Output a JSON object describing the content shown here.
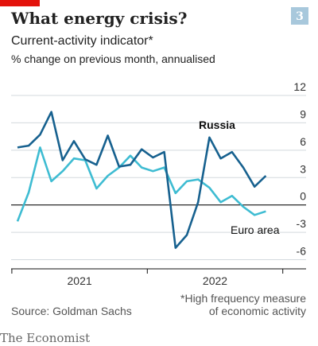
{
  "chart_data": {
    "type": "line",
    "title": "What energy crisis?",
    "badge": "3",
    "subtitle": "Current-activity indicator*",
    "y_label": "% change on previous month, annualised",
    "categories": [
      null,
      null,
      null,
      null,
      null,
      null,
      null,
      null,
      null,
      null,
      null,
      null,
      null,
      null,
      null,
      null,
      null,
      null,
      null,
      null,
      null,
      null,
      null
    ],
    "year_labels": [
      "2021",
      "2022"
    ],
    "series": [
      {
        "name": "Russia",
        "color": "#17618f",
        "values": [
          6.3,
          6.5,
          7.7,
          10.2,
          4.9,
          7.0,
          5.0,
          4.4,
          7.6,
          4.2,
          4.4,
          6.1,
          5.2,
          5.8,
          -4.7,
          -3.3,
          0.3,
          7.4,
          5.1,
          5.8,
          4.1,
          2.0,
          3.2
        ]
      },
      {
        "name": "Euro area",
        "color": "#3ebcd2",
        "values": [
          -1.8,
          1.4,
          6.3,
          2.6,
          3.7,
          5.1,
          4.9,
          1.8,
          3.2,
          4.1,
          5.4,
          4.1,
          3.7,
          4.1,
          1.3,
          2.6,
          2.8,
          1.9,
          0.3,
          1.0,
          -0.2,
          -1.1,
          -0.7
        ]
      }
    ],
    "ylim": [
      -7,
      12
    ],
    "yticks": [
      -6,
      -3,
      0,
      3,
      6,
      9,
      12
    ],
    "grid": true,
    "source": "Source: Goldman Sachs",
    "footnote": [
      "*High frequency measure",
      "of economic activity"
    ],
    "brand": "The Economist"
  }
}
